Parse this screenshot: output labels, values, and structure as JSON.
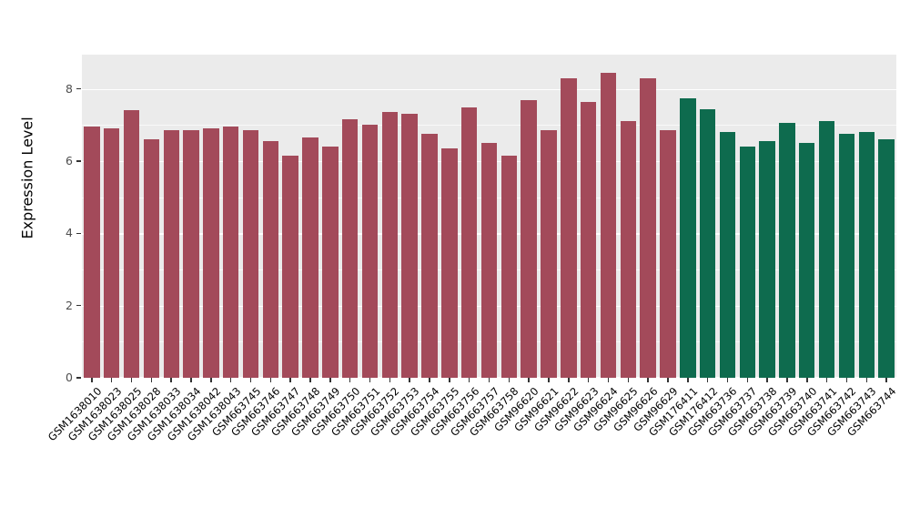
{
  "chart_data": {
    "type": "bar",
    "title": "",
    "xlabel": "",
    "ylabel": "Expression Level",
    "ylim": [
      0,
      8.95
    ],
    "yticks": [
      0,
      2,
      4,
      6,
      8
    ],
    "minor_ticks": [
      1,
      3,
      5,
      7
    ],
    "grid": true,
    "legend_position": "none",
    "panel_background": "#EBEBEB",
    "group_colors": {
      "group1": "#A34A5A",
      "group2": "#0E6B4E"
    },
    "points": [
      {
        "label": "GSM1638010",
        "value": 6.95,
        "group": "group1"
      },
      {
        "label": "GSM1638023",
        "value": 6.9,
        "group": "group1"
      },
      {
        "label": "GSM1638025",
        "value": 7.4,
        "group": "group1"
      },
      {
        "label": "GSM1638028",
        "value": 6.6,
        "group": "group1"
      },
      {
        "label": "GSM1638033",
        "value": 6.85,
        "group": "group1"
      },
      {
        "label": "GSM1638034",
        "value": 6.85,
        "group": "group1"
      },
      {
        "label": "GSM1638042",
        "value": 6.9,
        "group": "group1"
      },
      {
        "label": "GSM1638043",
        "value": 6.95,
        "group": "group1"
      },
      {
        "label": "GSM663745",
        "value": 6.85,
        "group": "group1"
      },
      {
        "label": "GSM663746",
        "value": 6.55,
        "group": "group1"
      },
      {
        "label": "GSM663747",
        "value": 6.15,
        "group": "group1"
      },
      {
        "label": "GSM663748",
        "value": 6.65,
        "group": "group1"
      },
      {
        "label": "GSM663749",
        "value": 6.4,
        "group": "group1"
      },
      {
        "label": "GSM663750",
        "value": 7.15,
        "group": "group1"
      },
      {
        "label": "GSM663751",
        "value": 7.0,
        "group": "group1"
      },
      {
        "label": "GSM663752",
        "value": 7.35,
        "group": "group1"
      },
      {
        "label": "GSM663753",
        "value": 7.3,
        "group": "group1"
      },
      {
        "label": "GSM663754",
        "value": 6.75,
        "group": "group1"
      },
      {
        "label": "GSM663755",
        "value": 6.35,
        "group": "group1"
      },
      {
        "label": "GSM663756",
        "value": 7.5,
        "group": "group1"
      },
      {
        "label": "GSM663757",
        "value": 6.5,
        "group": "group1"
      },
      {
        "label": "GSM663758",
        "value": 6.15,
        "group": "group1"
      },
      {
        "label": "GSM96620",
        "value": 7.7,
        "group": "group1"
      },
      {
        "label": "GSM96621",
        "value": 6.85,
        "group": "group1"
      },
      {
        "label": "GSM96622",
        "value": 8.3,
        "group": "group1"
      },
      {
        "label": "GSM96623",
        "value": 7.65,
        "group": "group1"
      },
      {
        "label": "GSM96624",
        "value": 8.45,
        "group": "group1"
      },
      {
        "label": "GSM96625",
        "value": 7.1,
        "group": "group1"
      },
      {
        "label": "GSM96626",
        "value": 8.3,
        "group": "group1"
      },
      {
        "label": "GSM96629",
        "value": 6.85,
        "group": "group1"
      },
      {
        "label": "GSM176411",
        "value": 7.75,
        "group": "group2"
      },
      {
        "label": "GSM176412",
        "value": 7.45,
        "group": "group2"
      },
      {
        "label": "GSM663736",
        "value": 6.8,
        "group": "group2"
      },
      {
        "label": "GSM663737",
        "value": 6.4,
        "group": "group2"
      },
      {
        "label": "GSM663738",
        "value": 6.55,
        "group": "group2"
      },
      {
        "label": "GSM663739",
        "value": 7.05,
        "group": "group2"
      },
      {
        "label": "GSM663740",
        "value": 6.5,
        "group": "group2"
      },
      {
        "label": "GSM663741",
        "value": 7.1,
        "group": "group2"
      },
      {
        "label": "GSM663742",
        "value": 6.75,
        "group": "group2"
      },
      {
        "label": "GSM663743",
        "value": 6.8,
        "group": "group2"
      },
      {
        "label": "GSM663744",
        "value": 6.6,
        "group": "group2"
      }
    ]
  }
}
